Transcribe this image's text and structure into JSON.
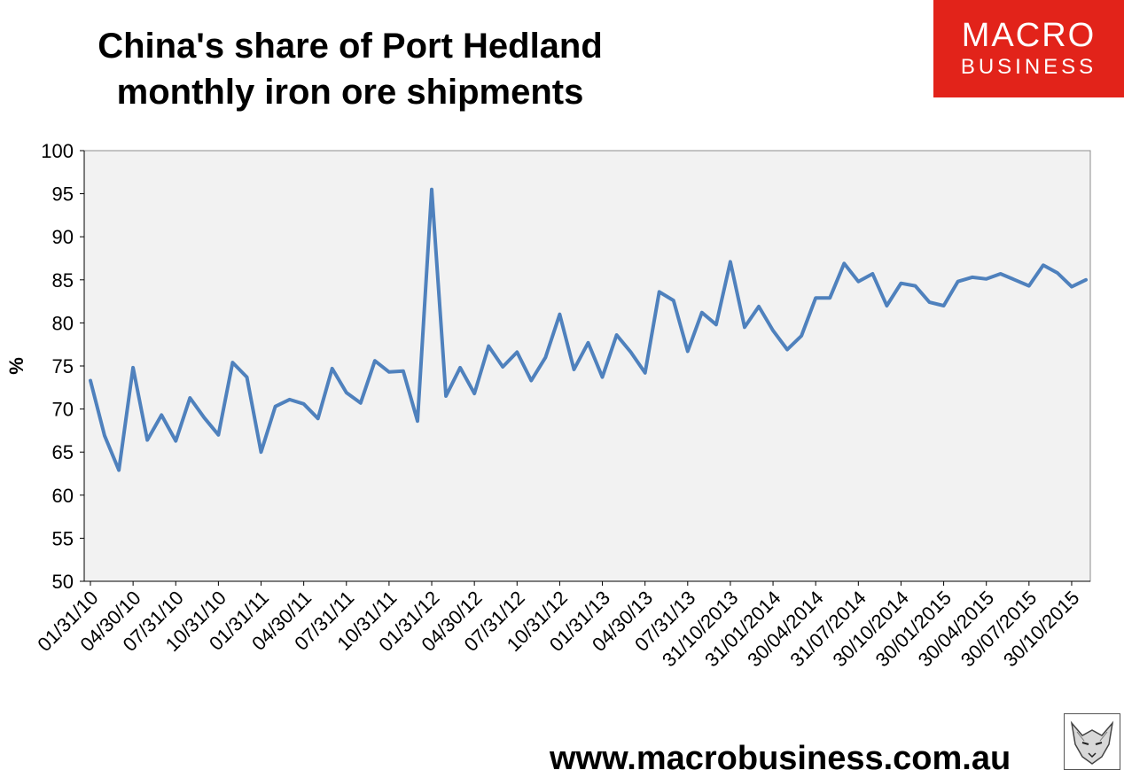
{
  "header": {
    "title_line1": "China's share of Port Hedland",
    "title_line2": "monthly iron ore shipments"
  },
  "logo": {
    "line1": "MACRO",
    "line2": "BUSINESS"
  },
  "footer": {
    "url": "www.macrobusiness.com.au"
  },
  "colors": {
    "line": "#4f81bd",
    "plot_bg": "#f2f2f2",
    "logo_bg": "#e2231a"
  },
  "chart_data": {
    "type": "line",
    "title": "China's share of Port Hedland monthly iron ore shipments",
    "ylabel": "%",
    "xlabel": "",
    "ylim": [
      50,
      100
    ],
    "yticks": [
      50,
      55,
      60,
      65,
      70,
      75,
      80,
      85,
      90,
      95,
      100
    ],
    "grid": false,
    "x_tick_labels": [
      "01/31/10",
      "04/30/10",
      "07/31/10",
      "10/31/10",
      "01/31/11",
      "04/30/11",
      "07/31/11",
      "10/31/11",
      "01/31/12",
      "04/30/12",
      "07/31/12",
      "10/31/12",
      "01/31/13",
      "04/30/13",
      "07/31/13",
      "31/10/2013",
      "31/01/2014",
      "30/04/2014",
      "31/07/2014",
      "30/10/2014",
      "30/01/2015",
      "30/04/2015",
      "30/07/2015",
      "30/10/2015"
    ],
    "values": [
      73.3,
      66.9,
      62.9,
      74.8,
      66.4,
      69.3,
      66.3,
      71.3,
      69.0,
      67.0,
      75.4,
      73.7,
      65.0,
      70.3,
      71.1,
      70.6,
      68.9,
      74.7,
      71.9,
      70.7,
      75.6,
      74.3,
      74.4,
      68.6,
      95.5,
      71.5,
      74.8,
      71.8,
      77.3,
      74.9,
      76.6,
      73.3,
      76.0,
      81.0,
      74.6,
      77.7,
      73.7,
      78.6,
      76.6,
      74.2,
      83.6,
      82.6,
      76.7,
      81.2,
      79.8,
      87.1,
      79.5,
      81.9,
      79.1,
      76.9,
      78.5,
      82.9,
      82.9,
      86.9,
      84.8,
      85.7,
      82.0,
      84.6,
      84.3,
      82.4,
      82.0,
      84.8,
      85.3,
      85.1,
      85.7,
      85.0,
      84.3,
      86.7,
      85.8,
      84.2,
      85.0
    ]
  }
}
